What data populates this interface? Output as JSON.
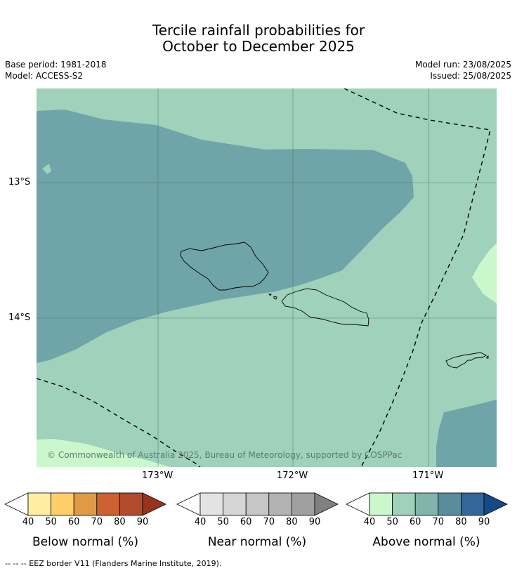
{
  "title": {
    "line1": "Tercile rainfall probabilities for",
    "line2": "October to December 2025"
  },
  "meta": {
    "base_period": "Base period: 1981-2018",
    "model": "Model: ACCESS-S2",
    "model_run": "Model run: 23/08/2025",
    "issued": "Issued: 25/08/2025"
  },
  "map": {
    "copyright": "© Commonwealth of Australia 2025, Bureau of Meteorology, supported by COSPPac",
    "lat_ticks": [
      "13°S",
      "14°S"
    ],
    "lon_ticks": [
      "173°W",
      "172°W",
      "171°W"
    ],
    "colors": {
      "above_50_60": "#9fd1bb",
      "above_70_80": "#6fa4a8",
      "above_40_50": "#cbf7cc",
      "grid": "#3f6b5c",
      "eez": "#000000"
    }
  },
  "colorbars": [
    {
      "title": "Below normal (%)",
      "ticks": [
        "40",
        "50",
        "60",
        "70",
        "80",
        "90"
      ],
      "colors": [
        "#ffffff",
        "#ffeea3",
        "#fece68",
        "#e09a46",
        "#cc6132",
        "#b04c2c",
        "#98331f"
      ]
    },
    {
      "title": "Near normal (%)",
      "ticks": [
        "40",
        "50",
        "60",
        "70",
        "80",
        "90"
      ],
      "colors": [
        "#ffffff",
        "#e3e3e3",
        "#d6d6d6",
        "#c6c6c6",
        "#b3b3b3",
        "#a0a0a0",
        "#808080"
      ]
    },
    {
      "title": "Above normal (%)",
      "ticks": [
        "40",
        "50",
        "60",
        "70",
        "80",
        "90"
      ],
      "colors": [
        "#ffffff",
        "#cbf7cc",
        "#9fd1bb",
        "#82b4ac",
        "#5a8c9c",
        "#346699",
        "#164a85"
      ]
    }
  ],
  "footer": "-- -- -- EEZ border V11 (Flanders Marine Institute, 2019)."
}
